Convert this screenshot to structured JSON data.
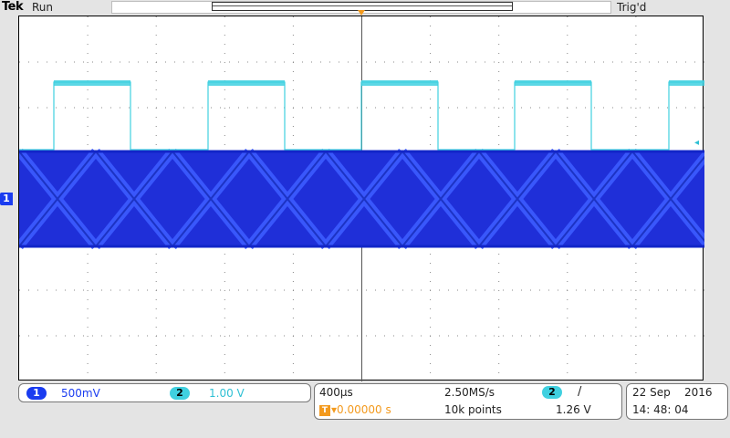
{
  "header": {
    "brand": "Tek",
    "acq_state": "Run",
    "trigger_state": "Trig'd"
  },
  "markers": {
    "trigger": "T",
    "ch1": "1",
    "ch2_level_glyph": "◂"
  },
  "channels": {
    "ch1": {
      "number": "1",
      "scale": "500mV",
      "color": "#1a3cf0"
    },
    "ch2": {
      "number": "2",
      "scale": "1.00 V",
      "color": "#40d0e0"
    }
  },
  "horizontal": {
    "timebase": "400µs",
    "sample_rate": "2.50MS/s",
    "record_length": "10k points",
    "trigger_delay": "▾0.00000 s"
  },
  "trigger": {
    "source": "2",
    "slope": "/",
    "level": "1.26 V"
  },
  "datetime": {
    "date": "22 Sep    2016",
    "time": "14: 48: 04"
  },
  "waveform": {
    "ch2_type": "square clock",
    "ch1_type": "eye diagram"
  }
}
